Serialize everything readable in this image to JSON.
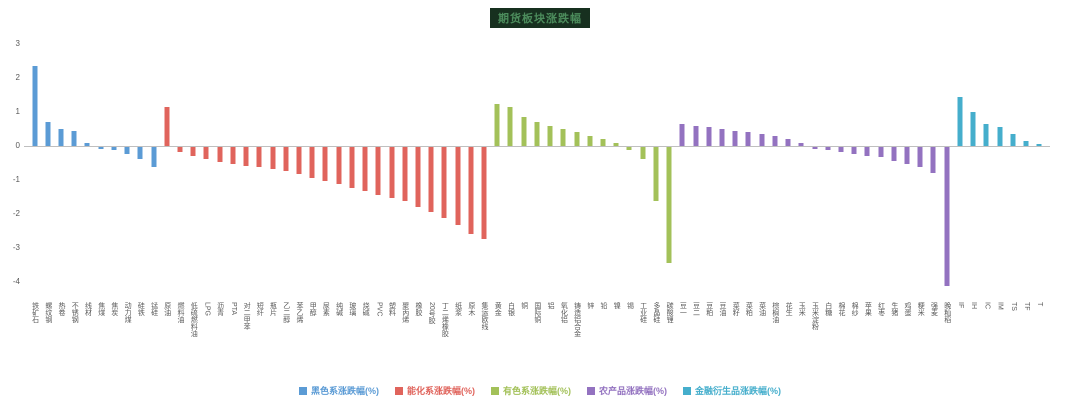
{
  "title": "期货板块涨跌幅",
  "axis": {
    "tick_color": "#595959",
    "zero_line_color": "#bfbfbf"
  },
  "chart_data": {
    "type": "bar",
    "title": "期货板块涨跌幅",
    "xlabel": "",
    "ylabel": "",
    "ylim": [
      -4.5,
      3
    ],
    "yticks": [
      3,
      2,
      1,
      0,
      -1,
      -2,
      -3,
      -4
    ],
    "grid": false,
    "legend_position": "bottom",
    "series": [
      {
        "name": "黑色系涨跌幅(%)",
        "color": "#5b9bd5",
        "categories": [
          "铁矿石",
          "螺纹钢",
          "热卷",
          "不锈钢",
          "线材",
          "焦煤",
          "焦炭",
          "动力煤",
          "硅铁",
          "锰硅"
        ],
        "values": [
          2.35,
          0.7,
          0.5,
          0.45,
          0.1,
          -0.05,
          -0.1,
          -0.2,
          -0.35,
          -0.6
        ]
      },
      {
        "name": "能化系涨跌幅(%)",
        "color": "#e0645c",
        "categories": [
          "原油",
          "燃料油",
          "低硫燃料油",
          "LPG",
          "沥青",
          "PTA",
          "对二甲苯",
          "短纤",
          "瓶片",
          "乙二醇",
          "苯乙烯",
          "甲醇",
          "尿素",
          "纯碱",
          "玻璃",
          "烧碱",
          "PVC",
          "塑料",
          "聚丙烯",
          "橡胶",
          "20号胶",
          "丁二烯橡胶",
          "纸浆",
          "原木",
          "集运欧线"
        ],
        "values": [
          1.15,
          -0.15,
          -0.25,
          -0.35,
          -0.45,
          -0.5,
          -0.55,
          -0.6,
          -0.65,
          -0.7,
          -0.8,
          -0.9,
          -1.0,
          -1.1,
          -1.2,
          -1.3,
          -1.4,
          -1.5,
          -1.6,
          -1.75,
          -1.9,
          -2.1,
          -2.3,
          -2.55,
          -2.7
        ]
      },
      {
        "name": "有色系涨跌幅(%)",
        "color": "#a3c159",
        "categories": [
          "黄金",
          "白银",
          "铜",
          "国际铜",
          "铝",
          "氧化铝",
          "铸造铝合金",
          "锌",
          "铅",
          "镍",
          "锡",
          "工业硅",
          "多晶硅",
          "碳酸锂"
        ],
        "values": [
          1.25,
          1.15,
          0.85,
          0.7,
          0.6,
          0.5,
          0.4,
          0.3,
          0.2,
          0.1,
          -0.1,
          -0.35,
          -1.6,
          -3.4
        ]
      },
      {
        "name": "农产品涨跌幅(%)",
        "color": "#9372c0",
        "categories": [
          "豆一",
          "豆二",
          "豆粕",
          "豆油",
          "菜籽",
          "菜粕",
          "菜油",
          "棕榈油",
          "花生",
          "玉米",
          "玉米淀粉",
          "白糖",
          "棉花",
          "棉纱",
          "苹果",
          "红枣",
          "生猪",
          "鸡蛋",
          "粳米",
          "强麦",
          "晚籼稻"
        ],
        "values": [
          0.65,
          0.6,
          0.55,
          0.5,
          0.45,
          0.4,
          0.35,
          0.3,
          0.2,
          0.1,
          -0.05,
          -0.1,
          -0.15,
          -0.2,
          -0.25,
          -0.3,
          -0.4,
          -0.5,
          -0.6,
          -0.75,
          -4.1
        ]
      },
      {
        "name": "金融衍生品涨跌幅(%)",
        "color": "#45aecc",
        "categories": [
          "IF",
          "IH",
          "IC",
          "IM",
          "TS",
          "TF",
          "T"
        ],
        "values": [
          1.45,
          1.0,
          0.65,
          0.55,
          0.35,
          0.15,
          0.05
        ]
      }
    ]
  }
}
